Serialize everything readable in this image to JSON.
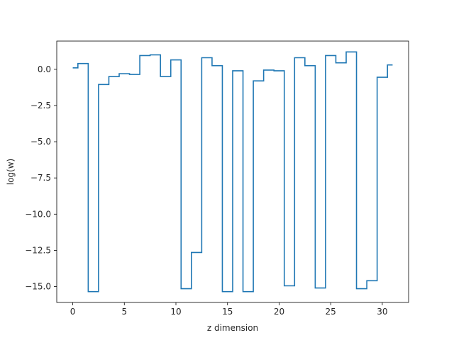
{
  "chart_data": {
    "type": "line",
    "drawstyle": "steps-mid",
    "title": "",
    "xlabel": "z dimension",
    "ylabel": "log(w)",
    "xlim": [
      -1.55,
      32.55
    ],
    "ylim": [
      -16.1,
      1.95
    ],
    "xticks": [
      0,
      5,
      10,
      15,
      20,
      25,
      30
    ],
    "yticks": [
      0.0,
      -2.5,
      -5.0,
      -7.5,
      -10.0,
      -12.5,
      -15.0
    ],
    "ytick_labels": [
      "0.0",
      "−2.5",
      "−5.0",
      "−7.5",
      "−10.0",
      "−12.5",
      "−15.0"
    ],
    "grid": false,
    "series": [
      {
        "color": "#1f77b4",
        "x": [
          0,
          1,
          2,
          3,
          4,
          5,
          6,
          7,
          8,
          9,
          10,
          11,
          12,
          13,
          14,
          15,
          16,
          17,
          18,
          19,
          20,
          21,
          22,
          23,
          24,
          25,
          26,
          27,
          28,
          29,
          30,
          31
        ],
        "values": [
          0.1,
          0.4,
          -15.35,
          -1.05,
          -0.5,
          -0.3,
          -0.35,
          0.95,
          1.0,
          -0.5,
          0.65,
          -15.15,
          -12.65,
          0.8,
          0.25,
          -15.35,
          -0.1,
          -15.35,
          -0.8,
          -0.05,
          -0.1,
          -14.95,
          0.8,
          0.25,
          -15.1,
          0.95,
          0.45,
          1.2,
          -15.15,
          -14.6,
          -0.55,
          0.3
        ]
      }
    ]
  }
}
